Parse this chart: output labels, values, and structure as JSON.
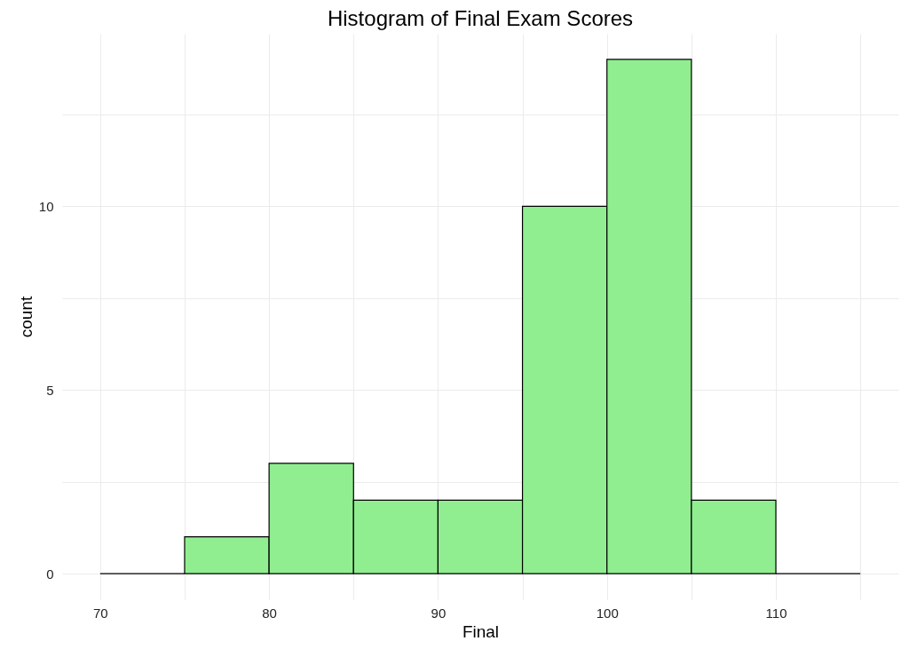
{
  "chart_data": {
    "type": "histogram",
    "title": "Histogram of Final Exam Scores",
    "xlabel": "Final",
    "ylabel": "count",
    "bins": [
      70,
      75,
      80,
      85,
      90,
      95,
      100,
      105,
      110,
      115
    ],
    "values": [
      0,
      1,
      3,
      2,
      2,
      10,
      14,
      2,
      0
    ],
    "colors": [
      "#000000",
      "#90ee90",
      "#90ee90",
      "#90ee90",
      "#90ee90",
      "#90ee90",
      "#90ee90",
      "#90ee90",
      "#000000"
    ],
    "xlim": [
      67.75,
      117.25
    ],
    "xticks": [
      70,
      {
        "value": 75,
        "label": null
      },
      80,
      {
        "value": 85,
        "label": null
      },
      90,
      {
        "value": 95,
        "label": null
      },
      100,
      {
        "value": 105,
        "label": null
      },
      110,
      {
        "value": 115,
        "label": null
      }
    ],
    "ylim": [
      -0.7,
      14.7
    ],
    "yticks": [
      0,
      {
        "value": 2.5,
        "label": null
      },
      5,
      {
        "value": 7.5,
        "label": null
      },
      10,
      {
        "value": 12.5,
        "label": null
      }
    ],
    "grid": true
  }
}
